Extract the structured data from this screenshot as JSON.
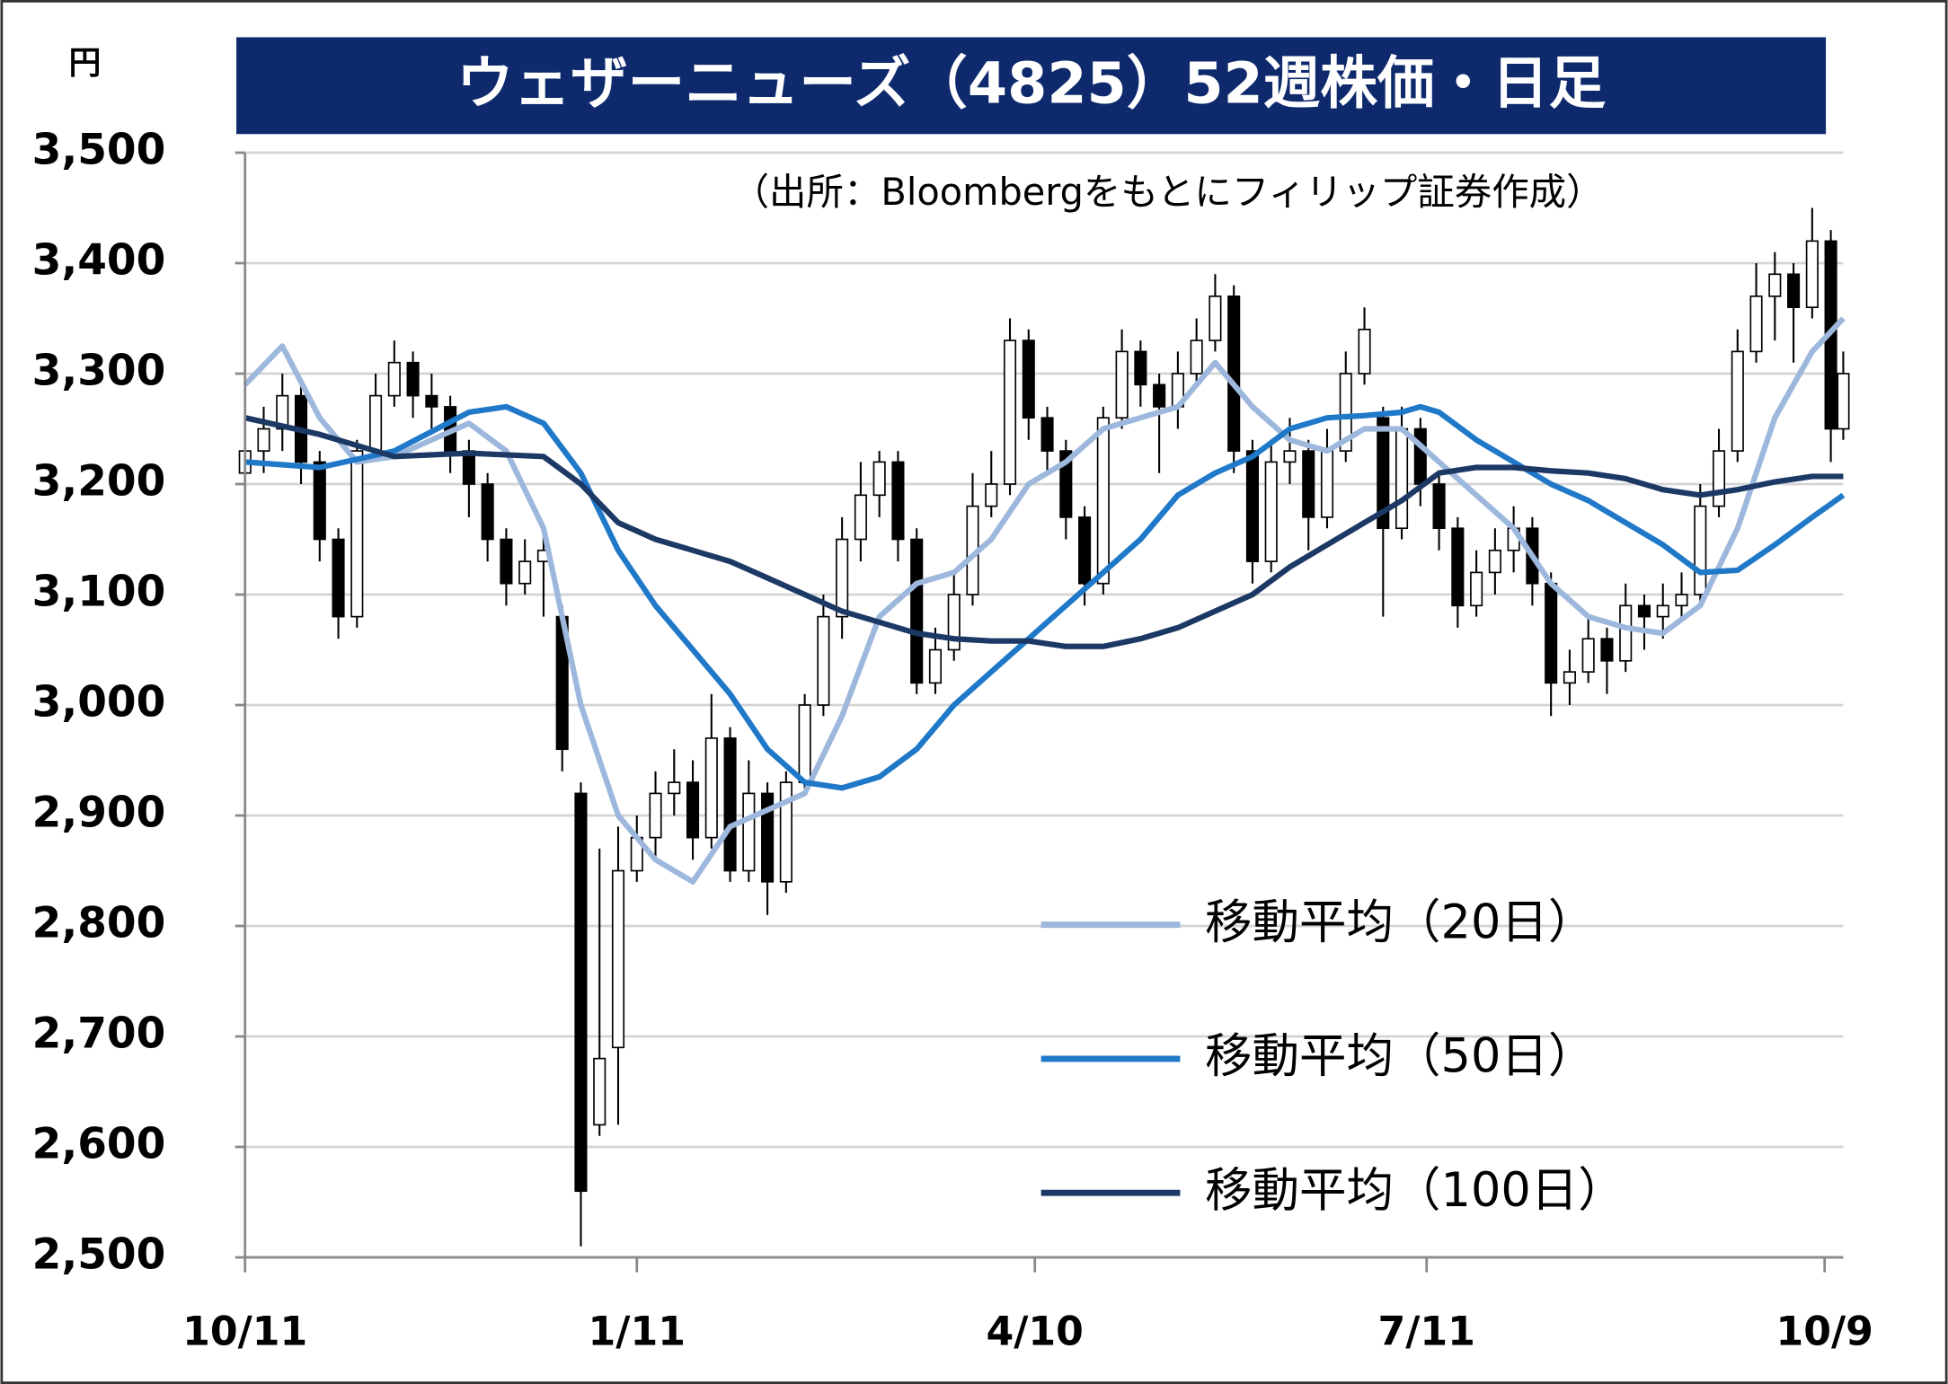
{
  "chart_data": {
    "type": "candlestick",
    "title": "ウェザーニューズ（4825）52週株価・日足",
    "unit": "円",
    "source": "（出所：Bloombergをもとにフィリップ証券作成）",
    "xlim": [
      0,
      257
    ],
    "xticks": [
      {
        "value": 0,
        "label": "10/11"
      },
      {
        "value": 63,
        "label": "1/11"
      },
      {
        "value": 127,
        "label": "4/10"
      },
      {
        "value": 190,
        "label": "7/11"
      },
      {
        "value": 254,
        "label": "10/9"
      }
    ],
    "ylim": [
      2500,
      3500
    ],
    "yticks": [
      {
        "value": 2500,
        "label": "2,500"
      },
      {
        "value": 2600,
        "label": "2,600"
      },
      {
        "value": 2700,
        "label": "2,700"
      },
      {
        "value": 2800,
        "label": "2,800"
      },
      {
        "value": 2900,
        "label": "2,900"
      },
      {
        "value": 3000,
        "label": "3,000"
      },
      {
        "value": 3100,
        "label": "3,100"
      },
      {
        "value": 3200,
        "label": "3,200"
      },
      {
        "value": 3300,
        "label": "3,300"
      },
      {
        "value": 3400,
        "label": "3,400"
      },
      {
        "value": 3500,
        "label": "3,500"
      }
    ],
    "grid": true,
    "candles": {
      "up_color": "#ffffff",
      "down_color": "#000000",
      "x": [
        0,
        3,
        6,
        9,
        12,
        15,
        18,
        21,
        24,
        27,
        30,
        33,
        36,
        39,
        42,
        45,
        48,
        51,
        54,
        57,
        60,
        63,
        66,
        69,
        72,
        75,
        78,
        81,
        84,
        87,
        90,
        93,
        96,
        99,
        102,
        105,
        108,
        111,
        114,
        117,
        120,
        123,
        126,
        129,
        132,
        135,
        138,
        141,
        144,
        147,
        150,
        153,
        156,
        159,
        162,
        165,
        168,
        171,
        174,
        177,
        180,
        183,
        186,
        189,
        192,
        195,
        198,
        201,
        204,
        207,
        210,
        213,
        216,
        219,
        222,
        225,
        228,
        231,
        234,
        237,
        240,
        243,
        246,
        249,
        252,
        255,
        257
      ],
      "ohlc": [
        [
          3210,
          3260,
          3180,
          3230
        ],
        [
          3230,
          3270,
          3210,
          3250
        ],
        [
          3250,
          3300,
          3230,
          3280
        ],
        [
          3280,
          3290,
          3200,
          3220
        ],
        [
          3220,
          3230,
          3130,
          3150
        ],
        [
          3150,
          3160,
          3060,
          3080
        ],
        [
          3080,
          3240,
          3070,
          3230
        ],
        [
          3230,
          3300,
          3220,
          3280
        ],
        [
          3280,
          3330,
          3270,
          3310
        ],
        [
          3310,
          3320,
          3260,
          3280
        ],
        [
          3280,
          3300,
          3250,
          3270
        ],
        [
          3270,
          3280,
          3210,
          3230
        ],
        [
          3230,
          3240,
          3170,
          3200
        ],
        [
          3200,
          3210,
          3130,
          3150
        ],
        [
          3150,
          3160,
          3090,
          3110
        ],
        [
          3110,
          3150,
          3100,
          3130
        ],
        [
          3130,
          3160,
          3080,
          3140
        ],
        [
          3080,
          3090,
          2940,
          2960
        ],
        [
          2920,
          2930,
          2510,
          2560
        ],
        [
          2620,
          2870,
          2610,
          2680
        ],
        [
          2690,
          2890,
          2620,
          2850
        ],
        [
          2850,
          2900,
          2840,
          2880
        ],
        [
          2880,
          2940,
          2860,
          2920
        ],
        [
          2920,
          2960,
          2900,
          2930
        ],
        [
          2930,
          2950,
          2860,
          2880
        ],
        [
          2880,
          3010,
          2870,
          2970
        ],
        [
          2970,
          2980,
          2840,
          2850
        ],
        [
          2850,
          2950,
          2840,
          2920
        ],
        [
          2920,
          2930,
          2810,
          2840
        ],
        [
          2840,
          2940,
          2830,
          2930
        ],
        [
          2930,
          3010,
          2920,
          3000
        ],
        [
          3000,
          3100,
          2990,
          3080
        ],
        [
          3080,
          3170,
          3060,
          3150
        ],
        [
          3150,
          3220,
          3130,
          3190
        ],
        [
          3190,
          3230,
          3170,
          3220
        ],
        [
          3220,
          3230,
          3130,
          3150
        ],
        [
          3150,
          3160,
          3010,
          3020
        ],
        [
          3020,
          3070,
          3010,
          3050
        ],
        [
          3050,
          3120,
          3040,
          3100
        ],
        [
          3100,
          3210,
          3090,
          3180
        ],
        [
          3180,
          3230,
          3170,
          3200
        ],
        [
          3200,
          3350,
          3190,
          3330
        ],
        [
          3330,
          3340,
          3240,
          3260
        ],
        [
          3260,
          3270,
          3210,
          3230
        ],
        [
          3230,
          3240,
          3150,
          3170
        ],
        [
          3170,
          3180,
          3090,
          3110
        ],
        [
          3110,
          3270,
          3100,
          3260
        ],
        [
          3260,
          3340,
          3250,
          3320
        ],
        [
          3320,
          3330,
          3270,
          3290
        ],
        [
          3290,
          3300,
          3210,
          3270
        ],
        [
          3270,
          3320,
          3250,
          3300
        ],
        [
          3300,
          3350,
          3290,
          3330
        ],
        [
          3330,
          3390,
          3320,
          3370
        ],
        [
          3370,
          3380,
          3210,
          3230
        ],
        [
          3230,
          3240,
          3110,
          3130
        ],
        [
          3130,
          3240,
          3120,
          3220
        ],
        [
          3220,
          3260,
          3200,
          3230
        ],
        [
          3230,
          3240,
          3140,
          3170
        ],
        [
          3170,
          3250,
          3160,
          3230
        ],
        [
          3230,
          3320,
          3220,
          3300
        ],
        [
          3300,
          3360,
          3290,
          3340
        ],
        [
          3260,
          3270,
          3080,
          3160
        ],
        [
          3160,
          3270,
          3150,
          3250
        ],
        [
          3250,
          3260,
          3180,
          3200
        ],
        [
          3200,
          3210,
          3140,
          3160
        ],
        [
          3160,
          3170,
          3070,
          3090
        ],
        [
          3090,
          3140,
          3080,
          3120
        ],
        [
          3120,
          3160,
          3100,
          3140
        ],
        [
          3140,
          3180,
          3120,
          3160
        ],
        [
          3160,
          3170,
          3090,
          3110
        ],
        [
          3110,
          3120,
          2990,
          3020
        ],
        [
          3020,
          3050,
          3000,
          3030
        ],
        [
          3030,
          3080,
          3020,
          3060
        ],
        [
          3060,
          3070,
          3010,
          3040
        ],
        [
          3040,
          3110,
          3030,
          3090
        ],
        [
          3090,
          3100,
          3050,
          3080
        ],
        [
          3080,
          3110,
          3060,
          3090
        ],
        [
          3090,
          3120,
          3080,
          3100
        ],
        [
          3100,
          3200,
          3090,
          3180
        ],
        [
          3180,
          3250,
          3170,
          3230
        ],
        [
          3230,
          3340,
          3220,
          3320
        ],
        [
          3320,
          3400,
          3310,
          3370
        ],
        [
          3370,
          3410,
          3330,
          3390
        ],
        [
          3390,
          3400,
          3310,
          3360
        ],
        [
          3360,
          3450,
          3350,
          3420
        ],
        [
          3420,
          3430,
          3220,
          3250
        ],
        [
          3250,
          3320,
          3240,
          3300
        ]
      ]
    },
    "series": [
      {
        "name": "移動平均（20日）",
        "color": "#9db8dc",
        "x": [
          0,
          6,
          12,
          18,
          24,
          30,
          36,
          42,
          48,
          54,
          60,
          66,
          72,
          78,
          84,
          90,
          96,
          102,
          108,
          114,
          120,
          126,
          132,
          138,
          144,
          150,
          156,
          162,
          168,
          174,
          180,
          186,
          192,
          198,
          204,
          210,
          216,
          222,
          228,
          234,
          240,
          246,
          252,
          257
        ],
        "values": [
          3290,
          3325,
          3260,
          3220,
          3225,
          3240,
          3255,
          3230,
          3160,
          3000,
          2900,
          2860,
          2840,
          2890,
          2905,
          2920,
          2990,
          3080,
          3110,
          3120,
          3150,
          3200,
          3220,
          3250,
          3260,
          3270,
          3310,
          3270,
          3240,
          3230,
          3250,
          3250,
          3220,
          3190,
          3160,
          3110,
          3080,
          3070,
          3065,
          3090,
          3160,
          3260,
          3320,
          3350
        ]
      },
      {
        "name": "移動平均（50日）",
        "color": "#1f78c8",
        "x": [
          0,
          12,
          24,
          36,
          42,
          48,
          54,
          60,
          66,
          72,
          78,
          84,
          90,
          96,
          102,
          108,
          114,
          120,
          126,
          132,
          138,
          144,
          150,
          156,
          162,
          168,
          174,
          180,
          186,
          189,
          192,
          198,
          204,
          210,
          216,
          222,
          228,
          234,
          240,
          246,
          252,
          257
        ],
        "values": [
          3220,
          3215,
          3230,
          3265,
          3270,
          3255,
          3210,
          3140,
          3090,
          3050,
          3010,
          2960,
          2930,
          2925,
          2935,
          2960,
          3000,
          3030,
          3060,
          3090,
          3120,
          3150,
          3190,
          3210,
          3225,
          3250,
          3260,
          3262,
          3265,
          3270,
          3265,
          3240,
          3220,
          3200,
          3185,
          3165,
          3145,
          3120,
          3122,
          3145,
          3170,
          3190
        ]
      },
      {
        "name": "移動平均（100日）",
        "color": "#1c3864",
        "x": [
          0,
          12,
          24,
          36,
          48,
          54,
          60,
          66,
          72,
          78,
          84,
          90,
          96,
          102,
          108,
          114,
          120,
          126,
          132,
          138,
          144,
          150,
          156,
          162,
          168,
          174,
          180,
          186,
          192,
          198,
          204,
          210,
          216,
          222,
          228,
          234,
          240,
          246,
          252,
          257
        ],
        "values": [
          3260,
          3245,
          3225,
          3228,
          3225,
          3200,
          3165,
          3150,
          3140,
          3130,
          3115,
          3100,
          3085,
          3075,
          3065,
          3060,
          3058,
          3058,
          3053,
          3053,
          3060,
          3070,
          3085,
          3100,
          3125,
          3145,
          3165,
          3185,
          3210,
          3215,
          3215,
          3212,
          3210,
          3205,
          3195,
          3190,
          3195,
          3202,
          3207,
          3207
        ]
      }
    ]
  }
}
